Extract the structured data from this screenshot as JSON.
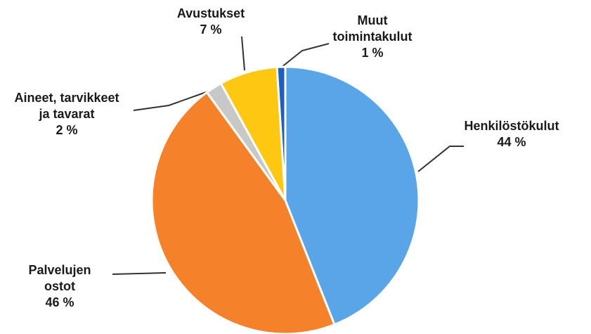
{
  "chart_data": {
    "type": "pie",
    "categories": [
      "Henkilöstökulut",
      "Palvelujen\nostot",
      "Aineet, tarvikkeet\nja tavarat",
      "Avustukset",
      "Muut\ntoimintakulut"
    ],
    "values": [
      44,
      46,
      2,
      7,
      1
    ],
    "value_labels": [
      "44 %",
      "46 %",
      "2 %",
      "7 %",
      "1 %"
    ],
    "colors": [
      "#5aa5e8",
      "#f5822a",
      "#c8c8c8",
      "#fdc712",
      "#1f5fbf"
    ]
  }
}
